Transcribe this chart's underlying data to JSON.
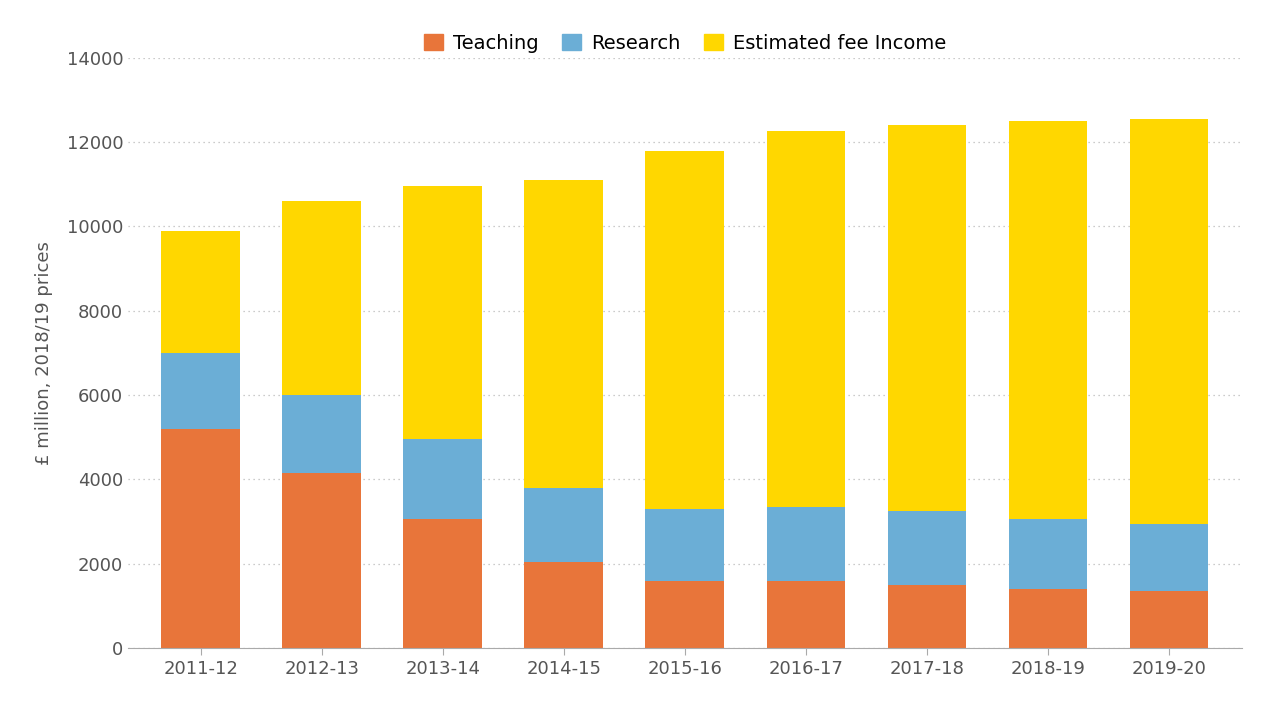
{
  "categories": [
    "2011-12",
    "2012-13",
    "2013-14",
    "2014-15",
    "2015-16",
    "2016-17",
    "2017-18",
    "2018-19",
    "2019-20"
  ],
  "teaching": [
    5200,
    4150,
    3050,
    2050,
    1600,
    1600,
    1500,
    1400,
    1350
  ],
  "research": [
    1800,
    1850,
    1900,
    1750,
    1700,
    1750,
    1750,
    1650,
    1600
  ],
  "fee_income": [
    2900,
    4600,
    6000,
    7300,
    8480,
    8900,
    9150,
    9450,
    9600
  ],
  "teaching_color": "#E8753A",
  "research_color": "#6BAED6",
  "fee_color": "#FFD700",
  "ylabel": "£ million, 2018/19 prices",
  "ylim": [
    0,
    14000
  ],
  "yticks": [
    0,
    2000,
    4000,
    6000,
    8000,
    10000,
    12000,
    14000
  ],
  "legend_labels": [
    "Teaching",
    "Research",
    "Estimated fee Income"
  ],
  "background_color": "#FFFFFF",
  "grid_color": "#BBBBBB",
  "bar_width": 0.65,
  "tick_fontsize": 13,
  "label_fontsize": 13,
  "legend_fontsize": 14
}
